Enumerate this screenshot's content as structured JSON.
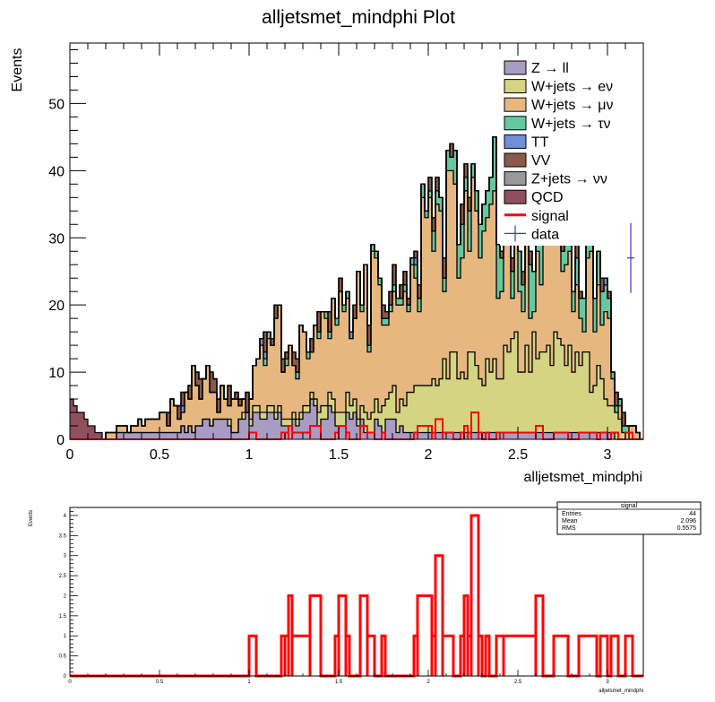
{
  "chart_data": [
    {
      "type": "stacked-histogram",
      "title": "alljetsmet_mindphi Plot",
      "xlabel": "alljetsmet_mindphi",
      "ylabel": "Events",
      "xlim": [
        0,
        3.2
      ],
      "ylim": [
        0,
        59
      ],
      "xticks": [
        "0",
        "0.5",
        "1",
        "1.5",
        "2",
        "2.5",
        "3"
      ],
      "yticks": [
        "0",
        "10",
        "20",
        "30",
        "40",
        "50"
      ],
      "legend_position": "top-right",
      "bins": 160,
      "colors": {
        "zll": "#a99cc2",
        "wenu": "#d4d482",
        "wmunu": "#e6b880",
        "wtaunu": "#66c8a0",
        "tt": "#6f8fd8",
        "vv": "#8a5a48",
        "znunu": "#999999",
        "qcd": "#8f4f5e",
        "signal": "#ff0000",
        "data": "#3b3bb5"
      },
      "legend": [
        {
          "key": "zll",
          "label": "Z → ll",
          "kind": "fill"
        },
        {
          "key": "wenu",
          "label": "W+jets → eν",
          "kind": "fill"
        },
        {
          "key": "wmunu",
          "label": "W+jets → μν",
          "kind": "fill"
        },
        {
          "key": "wtaunu",
          "label": "W+jets → τν",
          "kind": "fill"
        },
        {
          "key": "tt",
          "label": "TT",
          "kind": "fill"
        },
        {
          "key": "vv",
          "label": "VV",
          "kind": "fill"
        },
        {
          "key": "znunu",
          "label": "Z+jets → νν",
          "kind": "fill"
        },
        {
          "key": "qcd",
          "label": "QCD",
          "kind": "fill"
        },
        {
          "key": "signal",
          "label": "signal",
          "kind": "line"
        },
        {
          "key": "data",
          "label": "data",
          "kind": "marker"
        }
      ],
      "data_points": [
        {
          "x": 3.13,
          "y": 27,
          "err": 5.2
        }
      ],
      "profile": [
        {
          "x": 0.0,
          "top": 6,
          "zll": 0,
          "wenu": 0,
          "wtaunu": 0,
          "qcd": 6
        },
        {
          "x": 0.12,
          "top": 2,
          "zll": 0,
          "wenu": 0,
          "wtaunu": 0,
          "qcd": 2
        },
        {
          "x": 0.2,
          "top": 1,
          "zll": 0,
          "wenu": 0,
          "wtaunu": 0,
          "qcd": 0
        },
        {
          "x": 0.35,
          "top": 2,
          "zll": 1,
          "wenu": 0,
          "wtaunu": 0,
          "qcd": 0
        },
        {
          "x": 0.5,
          "top": 3,
          "zll": 1,
          "wenu": 0,
          "wtaunu": 0,
          "qcd": 0
        },
        {
          "x": 0.6,
          "top": 6,
          "zll": 1,
          "wenu": 0,
          "wtaunu": 0,
          "qcd": 0
        },
        {
          "x": 0.7,
          "top": 10,
          "zll": 2,
          "wenu": 0,
          "wtaunu": 0,
          "qcd": 0
        },
        {
          "x": 0.8,
          "top": 8,
          "zll": 2,
          "wenu": 0,
          "wtaunu": 0,
          "qcd": 0
        },
        {
          "x": 0.9,
          "top": 7,
          "zll": 2,
          "wenu": 0.5,
          "wtaunu": 0,
          "qcd": 0
        },
        {
          "x": 1.0,
          "top": 6,
          "zll": 3,
          "wenu": 0.5,
          "wtaunu": 0,
          "qcd": 0
        },
        {
          "x": 1.1,
          "top": 15,
          "zll": 3,
          "wenu": 1,
          "wtaunu": 0.5,
          "qcd": 0
        },
        {
          "x": 1.2,
          "top": 16,
          "zll": 3,
          "wenu": 1,
          "wtaunu": 0.5,
          "qcd": 0
        },
        {
          "x": 1.3,
          "top": 17,
          "zll": 4,
          "wenu": 1,
          "wtaunu": 0.5,
          "qcd": 0
        },
        {
          "x": 1.4,
          "top": 19,
          "zll": 4,
          "wenu": 1.5,
          "wtaunu": 0.5,
          "qcd": 0
        },
        {
          "x": 1.5,
          "top": 21,
          "zll": 3,
          "wenu": 2,
          "wtaunu": 0.5,
          "qcd": 0
        },
        {
          "x": 1.6,
          "top": 20,
          "zll": 3,
          "wenu": 2,
          "wtaunu": 0.5,
          "qcd": 0
        },
        {
          "x": 1.7,
          "top": 24,
          "zll": 2,
          "wenu": 3,
          "wtaunu": 1,
          "qcd": 0
        },
        {
          "x": 1.8,
          "top": 23,
          "zll": 2,
          "wenu": 4,
          "wtaunu": 1,
          "qcd": 0
        },
        {
          "x": 1.9,
          "top": 27,
          "zll": 1,
          "wenu": 5,
          "wtaunu": 1,
          "qcd": 0
        },
        {
          "x": 2.0,
          "top": 31,
          "zll": 1,
          "wenu": 7,
          "wtaunu": 1.5,
          "qcd": 0
        },
        {
          "x": 2.1,
          "top": 37,
          "zll": 1,
          "wenu": 9,
          "wtaunu": 3,
          "qcd": 0
        },
        {
          "x": 2.2,
          "top": 38,
          "zll": 1,
          "wenu": 10,
          "wtaunu": 4,
          "qcd": 0
        },
        {
          "x": 2.3,
          "top": 37,
          "zll": 1,
          "wenu": 10,
          "wtaunu": 5,
          "qcd": 0
        },
        {
          "x": 2.4,
          "top": 37,
          "zll": 1,
          "wenu": 11,
          "wtaunu": 6,
          "qcd": 0
        },
        {
          "x": 2.5,
          "top": 35,
          "zll": 1,
          "wenu": 12,
          "wtaunu": 6,
          "qcd": 0
        },
        {
          "x": 2.6,
          "top": 34,
          "zll": 1,
          "wenu": 12,
          "wtaunu": 6,
          "qcd": 0
        },
        {
          "x": 2.7,
          "top": 33,
          "zll": 1,
          "wenu": 12,
          "wtaunu": 6,
          "qcd": 0
        },
        {
          "x": 2.8,
          "top": 31,
          "zll": 1,
          "wenu": 11,
          "wtaunu": 5,
          "qcd": 0
        },
        {
          "x": 2.9,
          "top": 28,
          "zll": 1,
          "wenu": 9,
          "wtaunu": 4,
          "qcd": 0
        },
        {
          "x": 3.0,
          "top": 25,
          "zll": 1,
          "wenu": 7,
          "wtaunu": 3,
          "qcd": 0
        },
        {
          "x": 3.02,
          "top": 10,
          "zll": 1,
          "wenu": 5,
          "wtaunu": 1,
          "qcd": 0
        },
        {
          "x": 3.1,
          "top": 3,
          "zll": 0,
          "wenu": 1,
          "wtaunu": 0.5,
          "qcd": 0
        },
        {
          "x": 3.2,
          "top": 0,
          "zll": 0,
          "wenu": 0,
          "wtaunu": 0,
          "qcd": 0
        }
      ]
    },
    {
      "type": "histogram",
      "xlabel": "alljetsmet_mindphi",
      "ylabel": "Events",
      "xlim": [
        0,
        3.2
      ],
      "ylim": [
        0,
        4.2
      ],
      "xticks": [
        "0",
        "0.5",
        "1",
        "1.5",
        "2",
        "2.5",
        "3"
      ],
      "yticks": [
        "0",
        "0.5",
        "1",
        "1.5",
        "2",
        "2.5",
        "3",
        "3.5",
        "4"
      ],
      "series_color": "#ff0000",
      "stats": {
        "title": "signal",
        "rows": [
          {
            "label": "Entries",
            "value": "44"
          },
          {
            "label": "Mean",
            "value": "2.096"
          },
          {
            "label": "RMS",
            "value": "0.5575"
          }
        ]
      },
      "nonzero_bins": [
        {
          "lo": 1.0,
          "hi": 1.04,
          "v": 1
        },
        {
          "lo": 1.18,
          "hi": 1.2,
          "v": 1
        },
        {
          "lo": 1.2,
          "hi": 1.22,
          "v": 1
        },
        {
          "lo": 1.22,
          "hi": 1.24,
          "v": 2
        },
        {
          "lo": 1.24,
          "hi": 1.34,
          "v": 1
        },
        {
          "lo": 1.34,
          "hi": 1.4,
          "v": 2
        },
        {
          "lo": 1.48,
          "hi": 1.5,
          "v": 1
        },
        {
          "lo": 1.5,
          "hi": 1.54,
          "v": 2
        },
        {
          "lo": 1.54,
          "hi": 1.56,
          "v": 1
        },
        {
          "lo": 1.62,
          "hi": 1.66,
          "v": 2
        },
        {
          "lo": 1.66,
          "hi": 1.7,
          "v": 1
        },
        {
          "lo": 1.74,
          "hi": 1.76,
          "v": 1
        },
        {
          "lo": 1.92,
          "hi": 1.94,
          "v": 1
        },
        {
          "lo": 1.94,
          "hi": 2.02,
          "v": 2
        },
        {
          "lo": 2.02,
          "hi": 2.04,
          "v": 1
        },
        {
          "lo": 2.04,
          "hi": 2.08,
          "v": 3
        },
        {
          "lo": 2.08,
          "hi": 2.14,
          "v": 1
        },
        {
          "lo": 2.18,
          "hi": 2.2,
          "v": 1
        },
        {
          "lo": 2.2,
          "hi": 2.22,
          "v": 2
        },
        {
          "lo": 2.22,
          "hi": 2.24,
          "v": 1
        },
        {
          "lo": 2.24,
          "hi": 2.28,
          "v": 4
        },
        {
          "lo": 2.28,
          "hi": 2.3,
          "v": 1
        },
        {
          "lo": 2.32,
          "hi": 2.34,
          "v": 1
        },
        {
          "lo": 2.38,
          "hi": 2.42,
          "v": 1
        },
        {
          "lo": 2.42,
          "hi": 2.6,
          "v": 1
        },
        {
          "lo": 2.6,
          "hi": 2.64,
          "v": 2
        },
        {
          "lo": 2.7,
          "hi": 2.78,
          "v": 1
        },
        {
          "lo": 2.84,
          "hi": 2.94,
          "v": 1
        },
        {
          "lo": 2.96,
          "hi": 3.0,
          "v": 1
        },
        {
          "lo": 3.02,
          "hi": 3.06,
          "v": 1
        },
        {
          "lo": 3.1,
          "hi": 3.14,
          "v": 1
        }
      ]
    }
  ]
}
